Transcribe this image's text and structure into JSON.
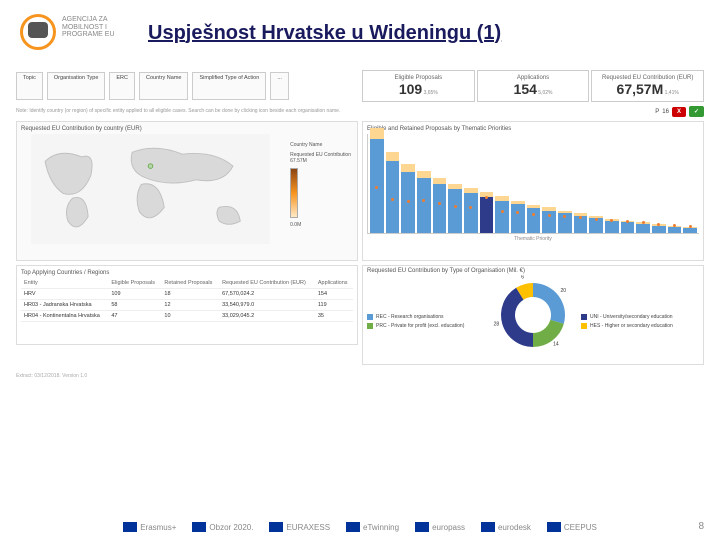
{
  "header": {
    "agency_line1": "AGENCIJA ZA",
    "agency_line2": "MOBILNOST I",
    "agency_line3": "PROGRAME EU",
    "title": "Uspješnost Hrvatske u Wideningu (1)"
  },
  "filters": [
    {
      "label": "Topic"
    },
    {
      "label": "Organisation Type"
    },
    {
      "label": "ERC"
    },
    {
      "label": "Country Name"
    },
    {
      "label": "Simplified Type of Action"
    },
    {
      "label": "..."
    }
  ],
  "kpis": [
    {
      "label": "Eligible Proposals",
      "value": "109",
      "sub": "3,65%"
    },
    {
      "label": "Applications",
      "value": "154",
      "sub": "5,02%"
    },
    {
      "label": "Requested EU Contribution (EUR)",
      "value": "67,57M",
      "sub": "1,41%"
    }
  ],
  "note": "Note: Identify country (or region) of specific entity applied to all eligible cases. Search can be done by clicking icon beside each organisation name.",
  "badges": {
    "p_label": "P",
    "p_value": "16",
    "red": "X",
    "green": "✓"
  },
  "map": {
    "title": "Requested EU Contribution by country (EUR)",
    "legend_title": "Country Name",
    "legend_label": "Requested EU Contribution",
    "legend_max": "67.57M",
    "legend_min": "0.0M",
    "land_fill": "#d9d9d9",
    "land_stroke": "#bfbfbf",
    "highlight_fill": "#b6d7a8",
    "ocean": "#f5f5f5"
  },
  "barchart": {
    "title": "Eligible and Retained Proposals by Thematic Priorities",
    "ylim": 160,
    "ytick_step": 20,
    "grid_color": "#eeeeee",
    "colors": {
      "elig": "#5b9bd5",
      "ret": "#fdd692",
      "dot": "#ed7d31"
    },
    "bars": [
      {
        "elig": 150,
        "ret": 18,
        "dot_y": 70,
        "highlight": false
      },
      {
        "elig": 115,
        "ret": 14,
        "dot_y": 52,
        "highlight": false
      },
      {
        "elig": 98,
        "ret": 12,
        "dot_y": 48,
        "highlight": false
      },
      {
        "elig": 88,
        "ret": 11,
        "dot_y": 50,
        "highlight": false
      },
      {
        "elig": 78,
        "ret": 10,
        "dot_y": 45,
        "highlight": false
      },
      {
        "elig": 70,
        "ret": 9,
        "dot_y": 40,
        "highlight": false
      },
      {
        "elig": 64,
        "ret": 8,
        "dot_y": 38,
        "highlight": false
      },
      {
        "elig": 58,
        "ret": 8,
        "dot_y": 55,
        "highlight": true
      },
      {
        "elig": 52,
        "ret": 7,
        "dot_y": 32,
        "highlight": false
      },
      {
        "elig": 46,
        "ret": 6,
        "dot_y": 30,
        "highlight": false
      },
      {
        "elig": 40,
        "ret": 5,
        "dot_y": 28,
        "highlight": false
      },
      {
        "elig": 36,
        "ret": 5,
        "dot_y": 26,
        "highlight": false
      },
      {
        "elig": 32,
        "ret": 4,
        "dot_y": 24,
        "highlight": false
      },
      {
        "elig": 28,
        "ret": 4,
        "dot_y": 22,
        "highlight": false
      },
      {
        "elig": 24,
        "ret": 3,
        "dot_y": 20,
        "highlight": false
      },
      {
        "elig": 20,
        "ret": 3,
        "dot_y": 18,
        "highlight": false
      },
      {
        "elig": 18,
        "ret": 2,
        "dot_y": 16,
        "highlight": false
      },
      {
        "elig": 15,
        "ret": 2,
        "dot_y": 14,
        "highlight": false
      },
      {
        "elig": 12,
        "ret": 2,
        "dot_y": 12,
        "highlight": false
      },
      {
        "elig": 10,
        "ret": 1,
        "dot_y": 10,
        "highlight": false
      },
      {
        "elig": 8,
        "ret": 1,
        "dot_y": 8,
        "highlight": false
      }
    ],
    "xlabel": "Thematic Priority"
  },
  "table": {
    "title": "Top Applying Countries / Regions",
    "columns": [
      "Entity",
      "Eligible Proposals",
      "Retained Proposals",
      "Requested EU Contribution (EUR)",
      "Applications"
    ],
    "rows": [
      [
        "HRV",
        "109",
        "18",
        "67,570,024.2",
        "154"
      ],
      [
        "HR03 - Jadranska Hrvatska",
        "58",
        "12",
        "33,540,979.0",
        "119"
      ],
      [
        "HR04 - Kontinentalna Hrvatska",
        "47",
        "10",
        "33,029,045.2",
        "35"
      ]
    ]
  },
  "donut": {
    "title": "Requested EU Contribution by Type of Organisation (Mil. €)",
    "slices": [
      {
        "label": "REC - Research organisations",
        "value": 20,
        "color": "#5b9bd5"
      },
      {
        "label": "PRC - Private for profit (excl. education)",
        "value": 14,
        "color": "#70ad47"
      },
      {
        "label": "UNI - University/secondary education",
        "value": 28,
        "color": "#2e3b8b"
      },
      {
        "label": "HES - Higher or secondary education",
        "value": 6,
        "color": "#ffc000"
      }
    ],
    "center_text": ""
  },
  "footer_note": "Extract: 03/12/2018. Version 1.0",
  "footer_logos": [
    "Erasmus+",
    "Obzor 2020.",
    "EURAXESS",
    "eTwinning",
    "europass",
    "eurodesk",
    "CEEPUS"
  ],
  "page_number": "8"
}
